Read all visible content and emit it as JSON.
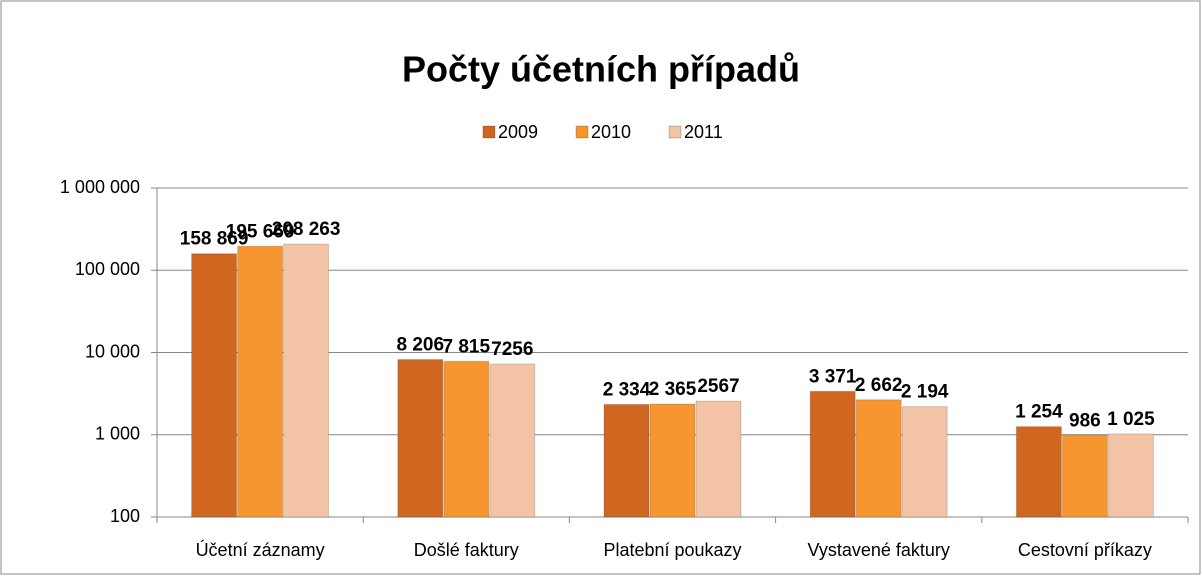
{
  "chart_data": {
    "type": "bar",
    "title": "Počty účetních případů",
    "categories": [
      "Účetní záznamy",
      "Došlé faktury",
      "Platební poukazy",
      "Vystavené faktury",
      "Cestovní příkazy"
    ],
    "series": [
      {
        "name": "2009",
        "color": "#d0661f",
        "values": [
          158869,
          8206,
          2334,
          3371,
          1254
        ],
        "value_labels": [
          "158 869",
          "8 206",
          "2 334",
          "3 371",
          "1 254"
        ]
      },
      {
        "name": "2010",
        "color": "#f7962f",
        "values": [
          195669,
          7815,
          2365,
          2662,
          986
        ],
        "value_labels": [
          "195 669",
          "7 815",
          "2 365",
          "2 662",
          "986"
        ]
      },
      {
        "name": "2011",
        "color": "#f3c3a5",
        "values": [
          208263,
          7256,
          2567,
          2194,
          1025
        ],
        "value_labels": [
          "208 263",
          "7256",
          "2567",
          "2 194",
          "1 025"
        ]
      }
    ],
    "ylim": [
      100,
      1000000
    ],
    "log_scale": true,
    "yticks": [
      100,
      {
        "value": 1000,
        "label": "1 000"
      },
      {
        "value": 10000,
        "label": "10 000"
      },
      {
        "value": 100000,
        "label": "100 000"
      },
      {
        "value": 1000000,
        "label": "1 000 000"
      }
    ],
    "grid": true,
    "legend": "top"
  }
}
